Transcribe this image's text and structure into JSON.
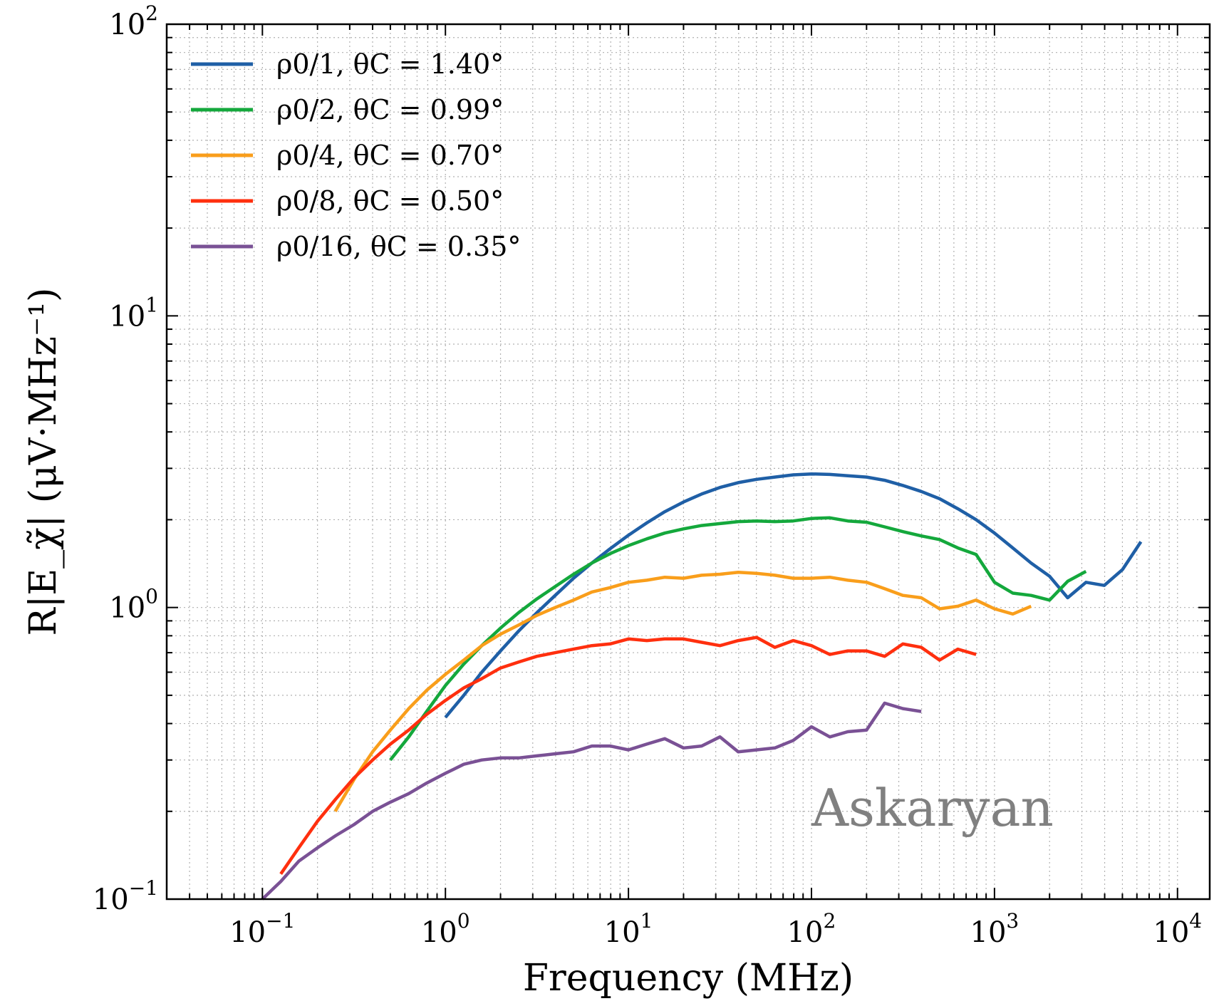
{
  "chart_data": {
    "type": "line",
    "xlabel": "Frequency (MHz)",
    "ylabel": "R|E_χ̃| (μV·MHz⁻¹)",
    "xscale": "log",
    "yscale": "log",
    "xlim": [
      0.03,
      15000
    ],
    "ylim": [
      0.1,
      100
    ],
    "grid": true,
    "legend_position": "top-left",
    "x_ticks": [
      {
        "value": 0.1,
        "base": "10",
        "exp": "−1"
      },
      {
        "value": 1,
        "base": "10",
        "exp": "0"
      },
      {
        "value": 10,
        "base": "10",
        "exp": "1"
      },
      {
        "value": 100,
        "base": "10",
        "exp": "2"
      },
      {
        "value": 1000,
        "base": "10",
        "exp": "3"
      },
      {
        "value": 10000,
        "base": "10",
        "exp": "4"
      }
    ],
    "y_ticks": [
      {
        "value": 0.1,
        "base": "10",
        "exp": "−1"
      },
      {
        "value": 1,
        "base": "10",
        "exp": "0"
      },
      {
        "value": 10,
        "base": "10",
        "exp": "1"
      },
      {
        "value": 100,
        "base": "10",
        "exp": "2"
      }
    ],
    "annotation": {
      "text": "Askaryan",
      "x": 100,
      "y": 0.2,
      "color": "#808080"
    },
    "series": [
      {
        "name": "ρ0/1, θC = 1.40°",
        "color": "#1f5fa6",
        "points": [
          [
            1.0,
            0.42
          ],
          [
            1.26,
            0.5
          ],
          [
            1.58,
            0.6
          ],
          [
            2.0,
            0.71
          ],
          [
            2.51,
            0.83
          ],
          [
            3.16,
            0.96
          ],
          [
            3.98,
            1.1
          ],
          [
            5.01,
            1.26
          ],
          [
            6.31,
            1.42
          ],
          [
            7.94,
            1.59
          ],
          [
            10,
            1.77
          ],
          [
            12.6,
            1.95
          ],
          [
            15.8,
            2.13
          ],
          [
            20,
            2.3
          ],
          [
            25.1,
            2.45
          ],
          [
            31.6,
            2.58
          ],
          [
            39.8,
            2.68
          ],
          [
            50.1,
            2.75
          ],
          [
            63.1,
            2.8
          ],
          [
            79.4,
            2.85
          ],
          [
            100,
            2.87
          ],
          [
            126,
            2.86
          ],
          [
            158,
            2.83
          ],
          [
            200,
            2.8
          ],
          [
            251,
            2.73
          ],
          [
            316,
            2.62
          ],
          [
            398,
            2.5
          ],
          [
            501,
            2.36
          ],
          [
            631,
            2.18
          ],
          [
            794,
            2.0
          ],
          [
            1000,
            1.8
          ],
          [
            1259,
            1.6
          ],
          [
            1585,
            1.42
          ],
          [
            2000,
            1.28
          ],
          [
            2512,
            1.08
          ],
          [
            3162,
            1.22
          ],
          [
            3981,
            1.19
          ],
          [
            5012,
            1.35
          ],
          [
            6310,
            1.68
          ]
        ]
      },
      {
        "name": "ρ0/2, θC = 0.99°",
        "color": "#14a83c",
        "points": [
          [
            0.5,
            0.3
          ],
          [
            0.63,
            0.36
          ],
          [
            0.79,
            0.44
          ],
          [
            1.0,
            0.54
          ],
          [
            1.26,
            0.64
          ],
          [
            1.58,
            0.74
          ],
          [
            2.0,
            0.85
          ],
          [
            2.51,
            0.96
          ],
          [
            3.16,
            1.07
          ],
          [
            3.98,
            1.18
          ],
          [
            5.01,
            1.3
          ],
          [
            6.31,
            1.42
          ],
          [
            7.94,
            1.53
          ],
          [
            10,
            1.63
          ],
          [
            12.6,
            1.72
          ],
          [
            15.8,
            1.8
          ],
          [
            20,
            1.86
          ],
          [
            25.1,
            1.91
          ],
          [
            31.6,
            1.94
          ],
          [
            39.8,
            1.97
          ],
          [
            50.1,
            1.98
          ],
          [
            63.1,
            1.97
          ],
          [
            79.4,
            1.98
          ],
          [
            100,
            2.02
          ],
          [
            126,
            2.03
          ],
          [
            158,
            1.98
          ],
          [
            200,
            1.96
          ],
          [
            251,
            1.89
          ],
          [
            316,
            1.82
          ],
          [
            398,
            1.76
          ],
          [
            501,
            1.71
          ],
          [
            631,
            1.6
          ],
          [
            794,
            1.52
          ],
          [
            1000,
            1.22
          ],
          [
            1259,
            1.12
          ],
          [
            1585,
            1.1
          ],
          [
            2000,
            1.06
          ],
          [
            2512,
            1.23
          ],
          [
            3162,
            1.33
          ]
        ]
      },
      {
        "name": "ρ0/4, θC = 0.70°",
        "color": "#f99e1b",
        "points": [
          [
            0.25,
            0.2
          ],
          [
            0.32,
            0.26
          ],
          [
            0.4,
            0.32
          ],
          [
            0.5,
            0.38
          ],
          [
            0.63,
            0.45
          ],
          [
            0.79,
            0.52
          ],
          [
            1.0,
            0.59
          ],
          [
            1.26,
            0.66
          ],
          [
            1.58,
            0.74
          ],
          [
            2.0,
            0.81
          ],
          [
            2.51,
            0.87
          ],
          [
            3.16,
            0.94
          ],
          [
            3.98,
            1.0
          ],
          [
            5.01,
            1.06
          ],
          [
            6.31,
            1.13
          ],
          [
            7.94,
            1.17
          ],
          [
            10,
            1.22
          ],
          [
            12.6,
            1.24
          ],
          [
            15.8,
            1.27
          ],
          [
            20,
            1.26
          ],
          [
            25.1,
            1.29
          ],
          [
            31.6,
            1.3
          ],
          [
            39.8,
            1.32
          ],
          [
            50.1,
            1.31
          ],
          [
            63.1,
            1.29
          ],
          [
            79.4,
            1.26
          ],
          [
            100,
            1.26
          ],
          [
            126,
            1.27
          ],
          [
            158,
            1.24
          ],
          [
            200,
            1.22
          ],
          [
            251,
            1.16
          ],
          [
            316,
            1.1
          ],
          [
            398,
            1.08
          ],
          [
            501,
            0.99
          ],
          [
            631,
            1.01
          ],
          [
            794,
            1.06
          ],
          [
            1000,
            0.99
          ],
          [
            1259,
            0.95
          ],
          [
            1585,
            1.01
          ]
        ]
      },
      {
        "name": "ρ0/8, θC = 0.50°",
        "color": "#ff2f0e",
        "points": [
          [
            0.126,
            0.122
          ],
          [
            0.158,
            0.15
          ],
          [
            0.2,
            0.185
          ],
          [
            0.251,
            0.22
          ],
          [
            0.316,
            0.26
          ],
          [
            0.4,
            0.3
          ],
          [
            0.5,
            0.34
          ],
          [
            0.63,
            0.38
          ],
          [
            0.79,
            0.43
          ],
          [
            1.0,
            0.48
          ],
          [
            1.26,
            0.53
          ],
          [
            1.58,
            0.57
          ],
          [
            2.0,
            0.62
          ],
          [
            2.51,
            0.65
          ],
          [
            3.16,
            0.68
          ],
          [
            3.98,
            0.7
          ],
          [
            5.01,
            0.72
          ],
          [
            6.31,
            0.74
          ],
          [
            7.94,
            0.75
          ],
          [
            10,
            0.78
          ],
          [
            12.6,
            0.77
          ],
          [
            15.8,
            0.78
          ],
          [
            20,
            0.78
          ],
          [
            25.1,
            0.76
          ],
          [
            31.6,
            0.74
          ],
          [
            39.8,
            0.77
          ],
          [
            50.1,
            0.79
          ],
          [
            63.1,
            0.73
          ],
          [
            79.4,
            0.77
          ],
          [
            100,
            0.74
          ],
          [
            126,
            0.69
          ],
          [
            158,
            0.71
          ],
          [
            200,
            0.71
          ],
          [
            251,
            0.68
          ],
          [
            316,
            0.75
          ],
          [
            398,
            0.73
          ],
          [
            501,
            0.66
          ],
          [
            631,
            0.72
          ],
          [
            794,
            0.69
          ]
        ]
      },
      {
        "name": "ρ0/16, θC = 0.35°",
        "color": "#7a5195",
        "points": [
          [
            0.1,
            0.1
          ],
          [
            0.126,
            0.115
          ],
          [
            0.158,
            0.135
          ],
          [
            0.2,
            0.15
          ],
          [
            0.251,
            0.165
          ],
          [
            0.316,
            0.18
          ],
          [
            0.4,
            0.2
          ],
          [
            0.5,
            0.215
          ],
          [
            0.63,
            0.23
          ],
          [
            0.79,
            0.25
          ],
          [
            1.0,
            0.27
          ],
          [
            1.26,
            0.29
          ],
          [
            1.58,
            0.3
          ],
          [
            2.0,
            0.305
          ],
          [
            2.51,
            0.305
          ],
          [
            3.16,
            0.31
          ],
          [
            3.98,
            0.315
          ],
          [
            5.01,
            0.32
          ],
          [
            6.31,
            0.335
          ],
          [
            7.94,
            0.335
          ],
          [
            10,
            0.325
          ],
          [
            12.6,
            0.34
          ],
          [
            15.8,
            0.355
          ],
          [
            20,
            0.33
          ],
          [
            25.1,
            0.335
          ],
          [
            31.6,
            0.36
          ],
          [
            39.8,
            0.32
          ],
          [
            50.1,
            0.325
          ],
          [
            63.1,
            0.33
          ],
          [
            79.4,
            0.35
          ],
          [
            100,
            0.39
          ],
          [
            126,
            0.36
          ],
          [
            158,
            0.375
          ],
          [
            200,
            0.38
          ],
          [
            251,
            0.47
          ],
          [
            316,
            0.45
          ],
          [
            398,
            0.44
          ]
        ]
      }
    ]
  }
}
